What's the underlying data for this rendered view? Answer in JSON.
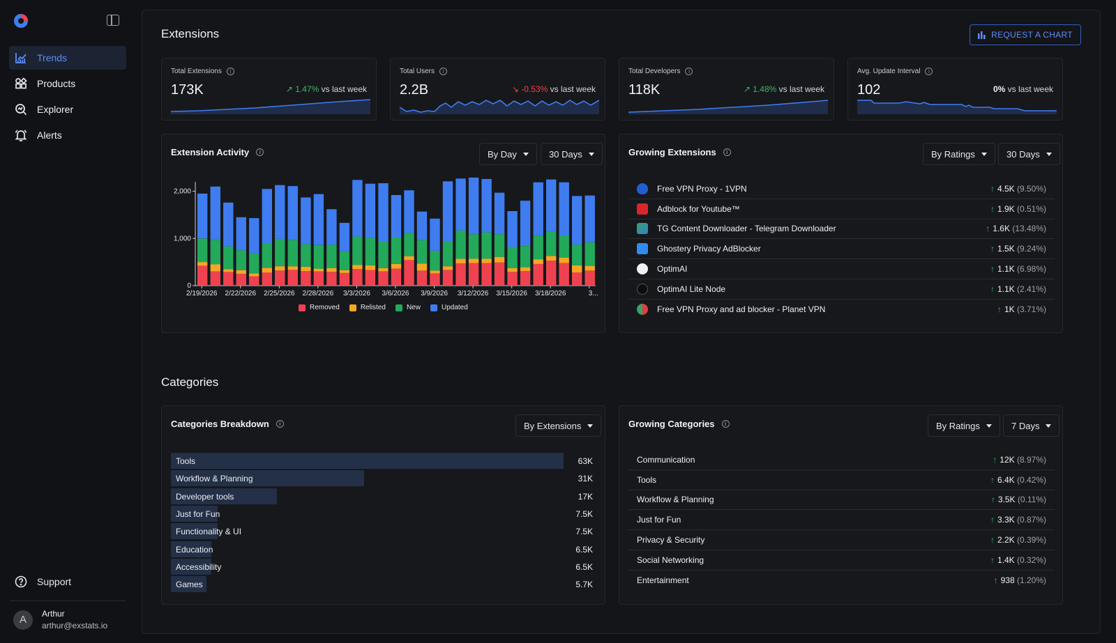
{
  "sidebar": {
    "items": [
      {
        "label": "Trends",
        "icon": "trends-icon",
        "active": true
      },
      {
        "label": "Products",
        "icon": "products-icon"
      },
      {
        "label": "Explorer",
        "icon": "explorer-icon"
      },
      {
        "label": "Alerts",
        "icon": "alerts-icon"
      }
    ],
    "support_label": "Support",
    "user": {
      "initial": "A",
      "name": "Arthur",
      "email": "arthur@exstats.io"
    }
  },
  "extensions": {
    "title": "Extensions",
    "request_button": "REQUEST A CHART",
    "stats": [
      {
        "label": "Total Extensions",
        "value": "173K",
        "delta": "1.47%",
        "direction": "up",
        "suffix": "vs last week"
      },
      {
        "label": "Total Users",
        "value": "2.2B",
        "delta": "-0.53%",
        "direction": "down",
        "suffix": "vs last week"
      },
      {
        "label": "Total Developers",
        "value": "118K",
        "delta": "1.48%",
        "direction": "up",
        "suffix": "vs last week"
      },
      {
        "label": "Avg. Update Interval",
        "value": "102",
        "delta": "0%",
        "direction": "flat",
        "suffix": "vs last week"
      }
    ],
    "activity": {
      "title": "Extension Activity",
      "group_by": "By Day",
      "range": "30 Days"
    },
    "growing": {
      "title": "Growing Extensions",
      "sort": "By Ratings",
      "range": "30 Days",
      "items": [
        {
          "name": "Free VPN Proxy - 1VPN",
          "value": "4.5K",
          "pct": "(9.50%)",
          "icon": "shield-icon"
        },
        {
          "name": "Adblock for Youtube™",
          "value": "1.9K",
          "pct": "(0.51%)",
          "icon": "adblock-icon"
        },
        {
          "name": "TG Content Downloader - Telegram Downloader",
          "value": "1.6K",
          "pct": "(13.48%)",
          "icon": "download-icon"
        },
        {
          "name": "Ghostery Privacy AdBlocker",
          "value": "1.5K",
          "pct": "(9.24%)",
          "icon": "ghost-icon"
        },
        {
          "name": "OptimAI",
          "value": "1.1K",
          "pct": "(6.98%)",
          "icon": "optimai-icon"
        },
        {
          "name": "OptimAI Lite Node",
          "value": "1.1K",
          "pct": "(2.41%)",
          "icon": "optimai-lite-icon"
        },
        {
          "name": "Free VPN Proxy and ad blocker - Planet VPN",
          "value": "1K",
          "pct": "(3.71%)",
          "icon": "planet-icon"
        }
      ]
    }
  },
  "categories": {
    "title": "Categories",
    "breakdown": {
      "title": "Categories Breakdown",
      "sort": "By Extensions",
      "items": [
        {
          "label": "Tools",
          "value": "63K",
          "num": 63
        },
        {
          "label": "Workflow & Planning",
          "value": "31K",
          "num": 31
        },
        {
          "label": "Developer tools",
          "value": "17K",
          "num": 17
        },
        {
          "label": "Just for Fun",
          "value": "7.5K",
          "num": 7.5
        },
        {
          "label": "Functionality & UI",
          "value": "7.5K",
          "num": 7.5
        },
        {
          "label": "Education",
          "value": "6.5K",
          "num": 6.5
        },
        {
          "label": "Accessibility",
          "value": "6.5K",
          "num": 6.5
        },
        {
          "label": "Games",
          "value": "5.7K",
          "num": 5.7
        }
      ]
    },
    "growing": {
      "title": "Growing Categories",
      "sort": "By Ratings",
      "range": "7 Days",
      "items": [
        {
          "name": "Communication",
          "value": "12K",
          "pct": "(8.97%)"
        },
        {
          "name": "Tools",
          "value": "6.4K",
          "pct": "(0.42%)"
        },
        {
          "name": "Workflow & Planning",
          "value": "3.5K",
          "pct": "(0.11%)"
        },
        {
          "name": "Just for Fun",
          "value": "3.3K",
          "pct": "(0.87%)"
        },
        {
          "name": "Privacy & Security",
          "value": "2.2K",
          "pct": "(0.39%)"
        },
        {
          "name": "Social Networking",
          "value": "1.4K",
          "pct": "(0.32%)"
        },
        {
          "name": "Entertainment",
          "value": "938",
          "pct": "(1.20%)"
        }
      ]
    }
  },
  "colors": {
    "removed": "#ef4250",
    "relisted": "#f5a623",
    "new": "#22a95a",
    "updated": "#3f7cf0",
    "accent": "#5b8ef6"
  },
  "chart_data": {
    "type": "bar",
    "stacked": true,
    "x": [
      "2/19/2026",
      "2/20/2026",
      "2/21/2026",
      "2/22/2026",
      "2/23/2026",
      "2/24/2026",
      "2/25/2026",
      "2/26/2026",
      "2/27/2026",
      "2/28/2026",
      "3/1/2026",
      "3/2/2026",
      "3/3/2026",
      "3/4/2026",
      "3/5/2026",
      "3/6/2026",
      "3/7/2026",
      "3/8/2026",
      "3/9/2026",
      "3/10/2026",
      "3/11/2026",
      "3/12/2026",
      "3/13/2026",
      "3/14/2026",
      "3/15/2026",
      "3/16/2026",
      "3/17/2026",
      "3/18/2026",
      "3/19/2026",
      "3/20/2026",
      "3/21/2026"
    ],
    "tick_labels": [
      "2/19/2026",
      "2/22/2026",
      "2/25/2026",
      "2/28/2026",
      "3/3/2026",
      "3/6/2026",
      "3/9/2026",
      "3/12/2026",
      "3/15/2026",
      "3/18/2026",
      "3..."
    ],
    "yticks": [
      "0",
      "1,000",
      "2,000"
    ],
    "ylim": [
      0,
      2200
    ],
    "series": [
      {
        "name": "Removed",
        "values": [
          420,
          300,
          290,
          250,
          200,
          280,
          320,
          330,
          310,
          300,
          290,
          270,
          350,
          330,
          300,
          360,
          540,
          320,
          260,
          330,
          470,
          480,
          480,
          490,
          290,
          310,
          460,
          530,
          480,
          280,
          320
        ]
      },
      {
        "name": "Relisted",
        "values": [
          80,
          150,
          60,
          80,
          60,
          100,
          90,
          80,
          90,
          60,
          80,
          60,
          90,
          100,
          70,
          100,
          80,
          150,
          60,
          80,
          100,
          90,
          90,
          120,
          80,
          80,
          100,
          100,
          110,
          150,
          100
        ]
      },
      {
        "name": "New",
        "values": [
          500,
          520,
          480,
          420,
          420,
          520,
          580,
          560,
          480,
          500,
          500,
          400,
          600,
          580,
          560,
          560,
          500,
          500,
          420,
          520,
          600,
          520,
          560,
          480,
          450,
          450,
          500,
          520,
          480,
          440,
          500
        ]
      },
      {
        "name": "Updated",
        "values": [
          950,
          1130,
          930,
          700,
          750,
          1150,
          1140,
          1140,
          990,
          1080,
          750,
          600,
          1200,
          1150,
          1240,
          900,
          900,
          600,
          680,
          1280,
          1100,
          1200,
          1130,
          880,
          760,
          960,
          1130,
          1100,
          1120,
          1030,
          990
        ]
      }
    ],
    "legend_position": "bottom"
  }
}
